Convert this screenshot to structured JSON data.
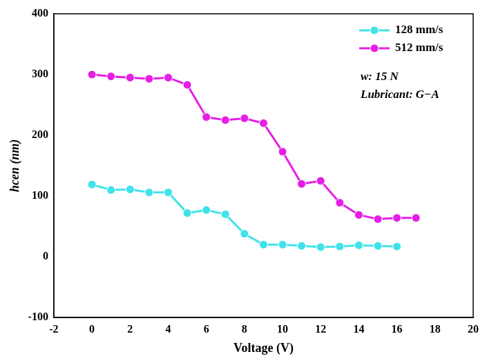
{
  "chart_data": {
    "type": "line",
    "x_label": "Voltage (V)",
    "y_label": "hcen (nm)",
    "annotations": [
      "w: 15 N",
      "Lubricant: G−A"
    ],
    "legend": "upper right",
    "grid": false,
    "marker": "circle",
    "xlim": [
      -2,
      20
    ],
    "xticks": [
      -2,
      0,
      2,
      4,
      6,
      8,
      10,
      12,
      14,
      16,
      18,
      20
    ],
    "ylim": [
      -100,
      400
    ],
    "yticks": [
      -100,
      0,
      100,
      200,
      300,
      400
    ],
    "series": [
      {
        "name": "128 mm/s",
        "color": "#3fe3ea",
        "x": [
          0,
          1,
          2,
          3,
          4,
          5,
          6,
          7,
          8,
          9,
          10,
          11,
          12,
          13,
          14,
          15,
          16
        ],
        "values": [
          119,
          110,
          111,
          106,
          106,
          72,
          77,
          70,
          38,
          20,
          20,
          18,
          16,
          17,
          19,
          18,
          17
        ]
      },
      {
        "name": "512 mm/s",
        "color": "#e61ee6",
        "x": [
          0,
          1,
          2,
          3,
          4,
          5,
          6,
          7,
          8,
          9,
          10,
          11,
          12,
          13,
          14,
          15,
          16,
          17
        ],
        "values": [
          300,
          297,
          295,
          293,
          295,
          283,
          230,
          225,
          228,
          220,
          173,
          120,
          125,
          89,
          69,
          62,
          64,
          64
        ]
      }
    ]
  }
}
